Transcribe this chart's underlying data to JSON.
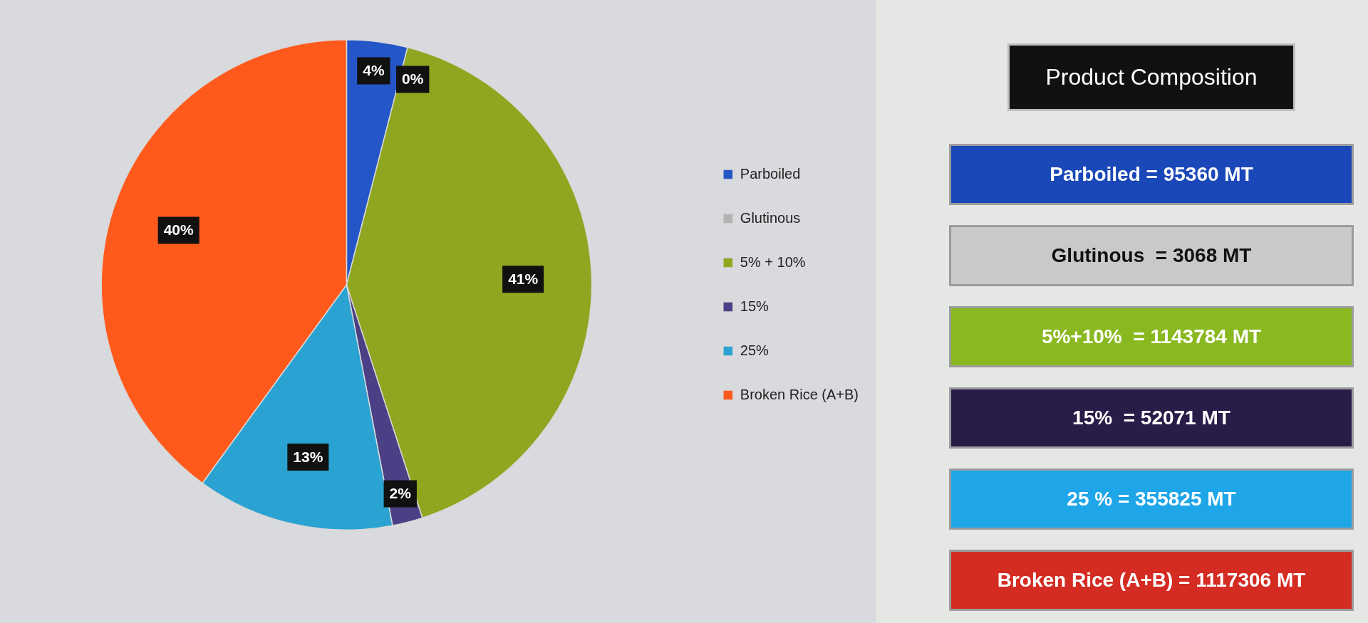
{
  "chart_data": [
    {
      "type": "pie",
      "categories": [
        "Parboiled",
        "Glutinous",
        "5% + 10%",
        "15%",
        "25%",
        "Broken Rice (A+B)"
      ],
      "values": [
        4,
        0,
        41,
        2,
        13,
        40
      ],
      "colors": [
        "#2456c8",
        "#b4b4b4",
        "#8fa620",
        "#4b3f85",
        "#2aa3d2",
        "#ff5a1c"
      ],
      "value_labels": [
        "4%",
        "0%",
        "41%",
        "2%",
        "13%",
        "40%"
      ],
      "legend": "right"
    },
    {
      "type": "other",
      "title": "Product Composition",
      "annotations": [
        "Parboiled = 95360 MT",
        "Glutinous  = 3068 MT",
        "5%+10%  = 1143784 MT",
        "15%  = 52071 MT",
        "25 % = 355825 MT",
        "Broken Rice (A+B) = 1117306 MT"
      ],
      "colors": [
        "#1b48b8",
        "#c9c9c9",
        "#8ab820",
        "#2a1c48",
        "#1fa6e8",
        "#d42b22"
      ]
    }
  ]
}
